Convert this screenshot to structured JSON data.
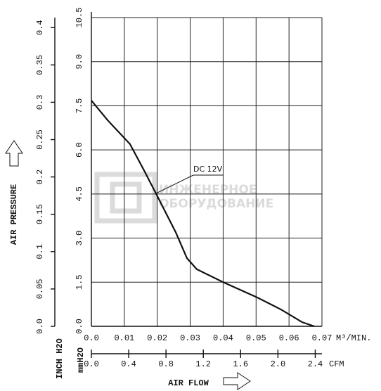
{
  "chart_data": {
    "type": "line",
    "series": [
      {
        "name": "DC 12V",
        "color": "#111111",
        "x": [
          0,
          0.005,
          0.0117,
          0.016,
          0.0196,
          0.0256,
          0.029,
          0.032,
          0.04,
          0.05,
          0.0576,
          0.064,
          0.0677
        ],
        "values": [
          7.68,
          7.0,
          6.2,
          5.3,
          4.52,
          3.2,
          2.32,
          1.94,
          1.5,
          1.0,
          0.57,
          0.14,
          0
        ]
      }
    ],
    "xlim": [
      0,
      0.07
    ],
    "xticks": [
      {
        "value": 0,
        "label": "0.0"
      },
      0.01,
      0.02,
      0.03,
      0.04,
      0.05,
      0.06,
      0.07
    ],
    "x2lim": [
      0,
      2.472
    ],
    "x2ticks": [
      {
        "value": 0,
        "label": "0.0"
      },
      0.4,
      0.8,
      1.2,
      1.6,
      {
        "value": 2,
        "label": "2.0"
      },
      2.4
    ],
    "ylim": [
      0,
      10.5
    ],
    "yticks": [
      {
        "value": 0,
        "label": "0.0"
      },
      1.5,
      {
        "value": 3,
        "label": "3.0"
      },
      4.5,
      {
        "value": 6,
        "label": "6.0"
      },
      7.5,
      {
        "value": 9,
        "label": "9.0"
      },
      10.5
    ],
    "y2lim": [
      0,
      0.4134
    ],
    "y2ticks": [
      {
        "value": 0,
        "label": "0.0"
      },
      0.05,
      0.1,
      0.15,
      0.2,
      0.25,
      0.3,
      0.35,
      0.4
    ],
    "xlabel": "AIR FLOW",
    "x_unit": "M³/MIN.",
    "x2_unit": "CFM",
    "ylabel": "AIR PRESSURE",
    "y_unit": "mmH2O",
    "y2_unit": "INCH H2O",
    "watermark": [
      "ИНЖЕНЕРНОЕ",
      "ОБОРУДОВАНИЕ"
    ],
    "grid": true
  }
}
